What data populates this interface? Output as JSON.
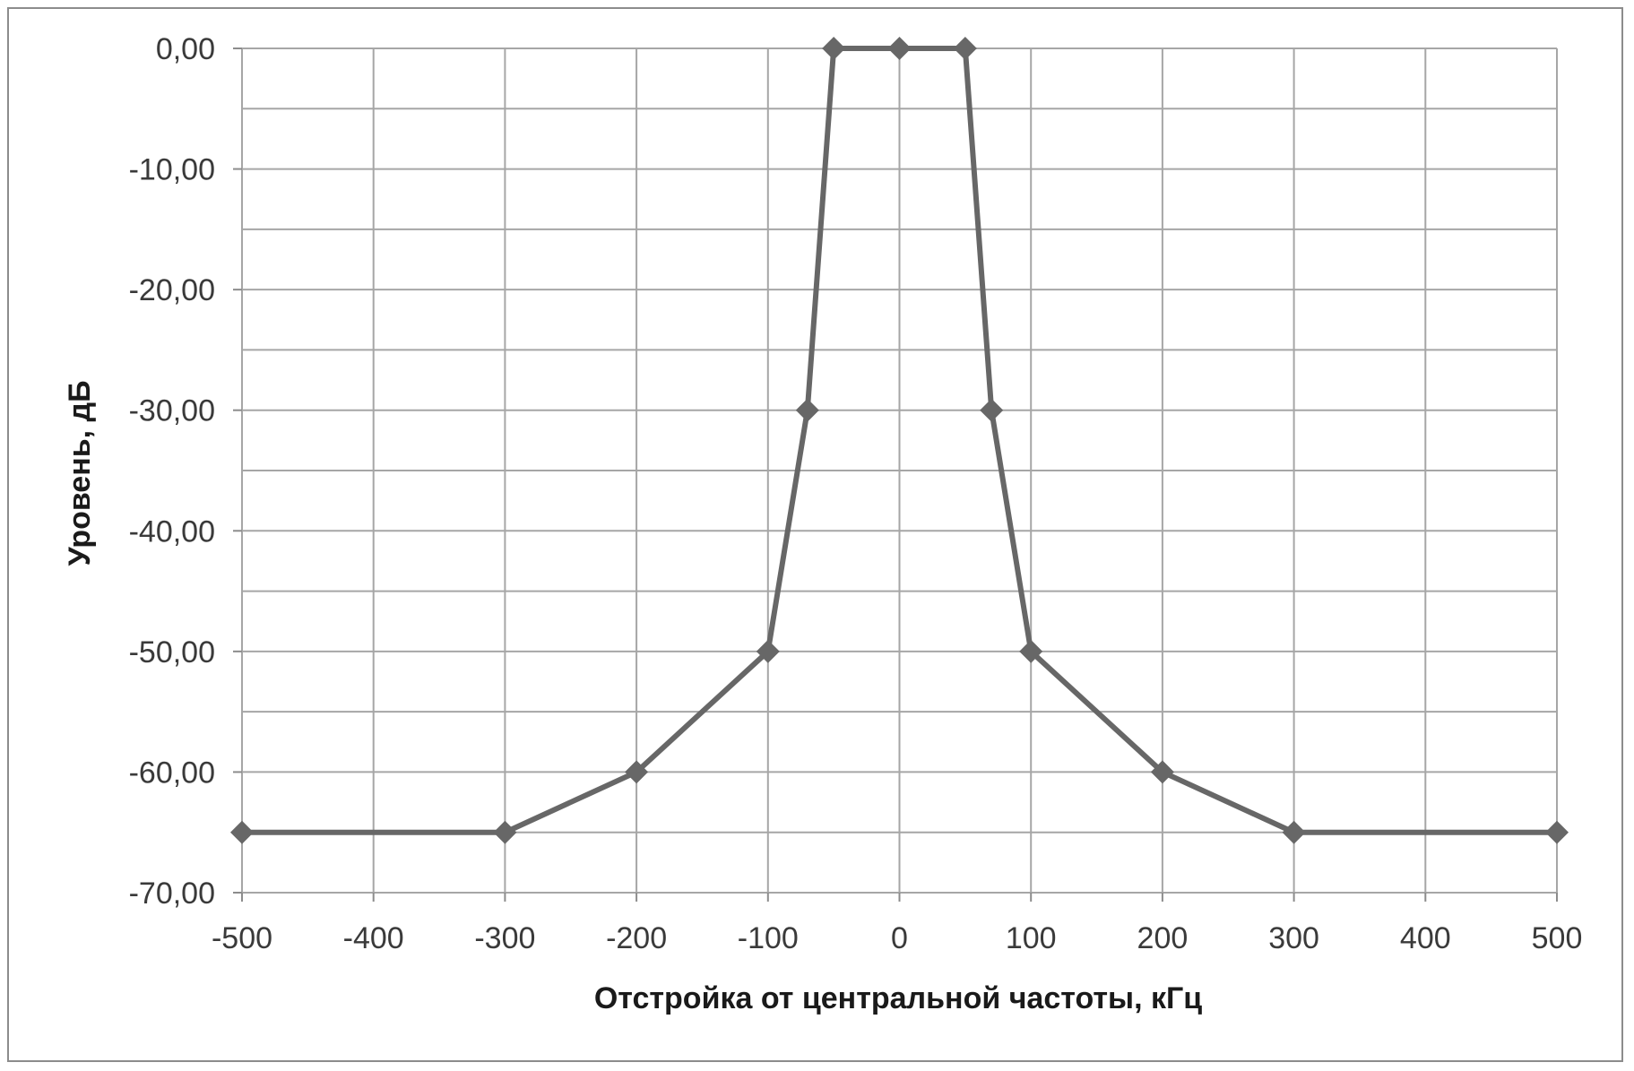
{
  "chart_data": {
    "type": "line",
    "title": "",
    "xlabel": "Отстройка от центральной частоты, кГц",
    "ylabel": "Уровень, дБ",
    "xlim": [
      -500,
      500
    ],
    "ylim": [
      -70,
      0
    ],
    "x_ticks": [
      -500,
      -400,
      -300,
      -200,
      -100,
      0,
      100,
      200,
      300,
      400,
      500
    ],
    "x_tick_labels": [
      "-500",
      "-400",
      "-300",
      "-200",
      "-100",
      "0",
      "100",
      "200",
      "300",
      "400",
      "500"
    ],
    "y_ticks": [
      0,
      -10,
      -20,
      -30,
      -40,
      -50,
      -60,
      -70
    ],
    "y_tick_labels": [
      "0,00",
      "-10,00",
      "-20,00",
      "-30,00",
      "-40,00",
      "-50,00",
      "-60,00",
      "-70,00"
    ],
    "y_minor_step": 5,
    "grid": true,
    "legend": "none",
    "series": [
      {
        "x": [
          -500,
          -300,
          -200,
          -100,
          -70,
          -50,
          0,
          50,
          70,
          100,
          200,
          300,
          500
        ],
        "values": [
          -65,
          -65,
          -60,
          -50,
          -30,
          0,
          0,
          0,
          -30,
          -50,
          -60,
          -65,
          -65
        ],
        "color": "#676767",
        "marker": "diamond"
      }
    ],
    "colors": {
      "grid": "#a6a6a6",
      "axis": "#8c8c8c",
      "line": "#676767"
    }
  }
}
